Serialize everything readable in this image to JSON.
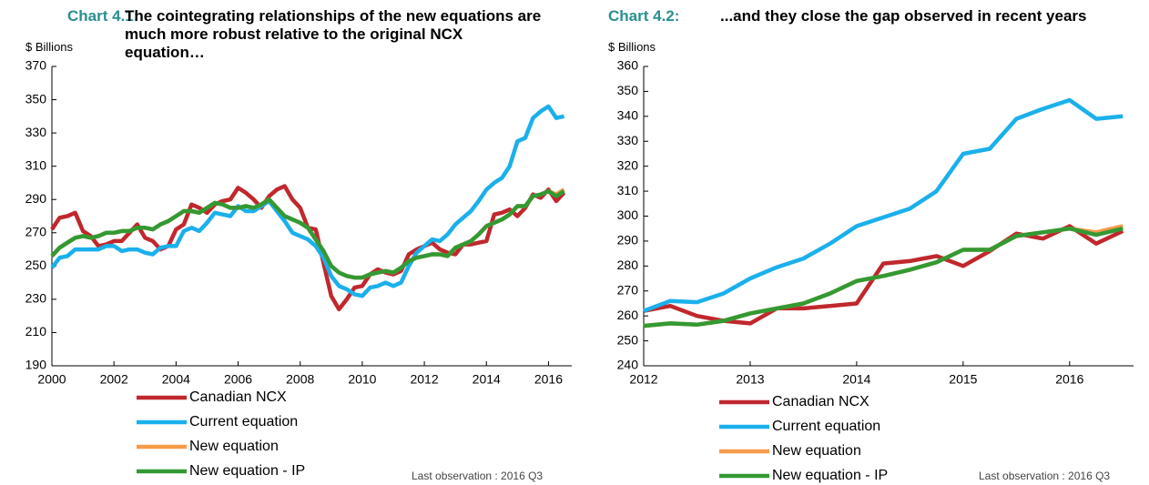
{
  "chart_data": [
    {
      "type": "line",
      "chart_label": "Chart 4.1:",
      "title": "The cointegrating relationships of the new equations are much more robust relative to the original NCX equation…",
      "ylabel": "$ Billions",
      "note": "Last observation : 2016 Q3",
      "x": [
        2000,
        2000.25,
        2000.5,
        2000.75,
        2001,
        2001.25,
        2001.5,
        2001.75,
        2002,
        2002.25,
        2002.5,
        2002.75,
        2003,
        2003.25,
        2003.5,
        2003.75,
        2004,
        2004.25,
        2004.5,
        2004.75,
        2005,
        2005.25,
        2005.5,
        2005.75,
        2006,
        2006.25,
        2006.5,
        2006.75,
        2007,
        2007.25,
        2007.5,
        2007.75,
        2008,
        2008.25,
        2008.5,
        2008.75,
        2009,
        2009.25,
        2009.5,
        2009.75,
        2010,
        2010.25,
        2010.5,
        2010.75,
        2011,
        2011.25,
        2011.5,
        2011.75,
        2012,
        2012.25,
        2012.5,
        2012.75,
        2013,
        2013.25,
        2013.5,
        2013.75,
        2014,
        2014.25,
        2014.5,
        2014.75,
        2015,
        2015.25,
        2015.5,
        2015.75,
        2016,
        2016.25,
        2016.5
      ],
      "xlim": [
        2000,
        2016.75
      ],
      "xticks": [
        2000,
        2002,
        2004,
        2006,
        2008,
        2010,
        2012,
        2014,
        2016
      ],
      "ylim": [
        190,
        370
      ],
      "yticks": [
        190,
        210,
        230,
        250,
        270,
        290,
        310,
        330,
        350,
        370
      ],
      "series": [
        {
          "name": "Canadian NCX",
          "color": "#c0282d",
          "values": [
            272,
            279,
            280,
            282,
            271,
            268,
            262,
            263,
            265,
            265,
            270,
            275,
            267,
            265,
            260,
            262,
            272,
            275,
            287,
            285,
            282,
            287,
            289,
            290,
            297,
            294,
            290,
            285,
            292,
            296,
            298,
            290,
            285,
            273,
            272,
            252,
            232,
            224,
            230,
            237,
            238,
            245,
            248,
            246,
            245,
            247,
            257,
            260,
            262,
            264,
            260,
            258,
            257,
            263,
            263,
            264,
            265,
            281,
            282,
            284,
            280,
            285,
            293,
            291,
            296,
            289,
            294
          ]
        },
        {
          "name": "Current equation",
          "color": "#1ab0ec",
          "values": [
            249,
            255,
            256,
            260,
            260,
            260,
            260,
            262,
            262,
            259,
            260,
            260,
            258,
            257,
            261,
            262,
            262,
            271,
            273,
            271,
            276,
            282,
            281,
            280,
            286,
            283,
            283,
            286,
            289,
            283,
            277,
            270,
            268,
            266,
            262,
            255,
            244,
            238,
            236,
            233,
            232,
            237,
            238,
            240,
            238,
            240,
            250,
            258,
            262,
            266,
            265,
            269,
            275,
            279,
            283,
            289,
            296,
            300,
            303,
            310,
            325,
            327,
            339,
            343,
            346,
            339,
            340
          ]
        },
        {
          "name": "New equation",
          "color": "#f79a4a",
          "values": [
            256,
            261,
            264,
            267,
            268,
            267,
            268,
            270,
            270,
            271,
            271,
            273,
            273,
            272,
            275,
            277,
            280,
            283,
            283,
            282,
            285,
            288,
            287,
            285,
            285,
            286,
            285,
            287,
            290,
            285,
            280,
            278,
            276,
            273,
            266,
            259,
            250,
            246,
            244,
            243,
            243,
            245,
            246,
            247,
            246,
            249,
            253,
            255,
            256,
            257,
            257,
            256,
            261,
            263,
            265,
            269,
            274,
            276,
            278,
            281,
            286,
            286,
            292,
            293,
            295,
            293,
            296
          ]
        },
        {
          "name": "New equation - IP",
          "color": "#339933",
          "values": [
            256,
            261,
            264,
            267,
            268,
            267,
            268,
            270,
            270,
            271,
            271,
            273,
            273,
            272,
            275,
            277,
            280,
            283,
            283,
            282,
            285,
            288,
            287,
            285,
            285,
            286,
            285,
            287,
            290,
            285,
            280,
            278,
            276,
            273,
            266,
            259,
            250,
            246,
            244,
            243,
            243,
            245,
            246,
            247,
            246,
            249,
            253,
            255,
            256,
            257,
            257,
            256,
            261,
            263,
            265,
            269,
            274,
            276,
            278,
            281,
            286,
            286,
            292,
            293,
            295,
            292,
            295
          ]
        }
      ]
    },
    {
      "type": "line",
      "chart_label": "Chart 4.2:",
      "title": "...and they close the gap observed in recent years",
      "ylabel": "$ Billions",
      "note": "Last observation : 2016 Q3",
      "x": [
        2012,
        2012.25,
        2012.5,
        2012.75,
        2013,
        2013.25,
        2013.5,
        2013.75,
        2014,
        2014.25,
        2014.5,
        2014.75,
        2015,
        2015.25,
        2015.5,
        2015.75,
        2016,
        2016.25,
        2016.5
      ],
      "xlim": [
        2012,
        2016.6
      ],
      "xticks": [
        2012,
        2013,
        2014,
        2015,
        2016
      ],
      "ylim": [
        240,
        360
      ],
      "yticks": [
        240,
        250,
        260,
        270,
        280,
        290,
        300,
        310,
        320,
        330,
        340,
        350,
        360
      ],
      "series": [
        {
          "name": "Canadian NCX",
          "color": "#c0282d",
          "values": [
            262,
            264,
            260,
            258,
            257,
            263,
            263,
            264,
            265,
            281,
            282,
            284,
            280,
            286,
            293,
            291,
            296,
            289,
            294
          ]
        },
        {
          "name": "Current equation",
          "color": "#1ab0ec",
          "values": [
            262,
            266,
            265.5,
            269,
            275,
            279.5,
            283,
            289,
            296,
            299.5,
            303,
            310,
            325,
            327,
            339,
            343,
            346.5,
            339,
            340
          ]
        },
        {
          "name": "New equation",
          "color": "#f79a4a",
          "values": [
            256,
            257,
            256.5,
            258,
            261,
            263,
            265,
            269,
            274,
            276,
            278.5,
            281.5,
            286.5,
            286.5,
            292,
            293.5,
            295,
            293.5,
            296
          ]
        },
        {
          "name": "New equation - IP",
          "color": "#339933",
          "values": [
            256,
            257,
            256.5,
            258,
            261,
            263,
            265,
            269,
            274,
            276,
            278.5,
            281.5,
            286.5,
            286.5,
            292,
            293.5,
            295,
            292.5,
            295
          ]
        }
      ]
    }
  ]
}
